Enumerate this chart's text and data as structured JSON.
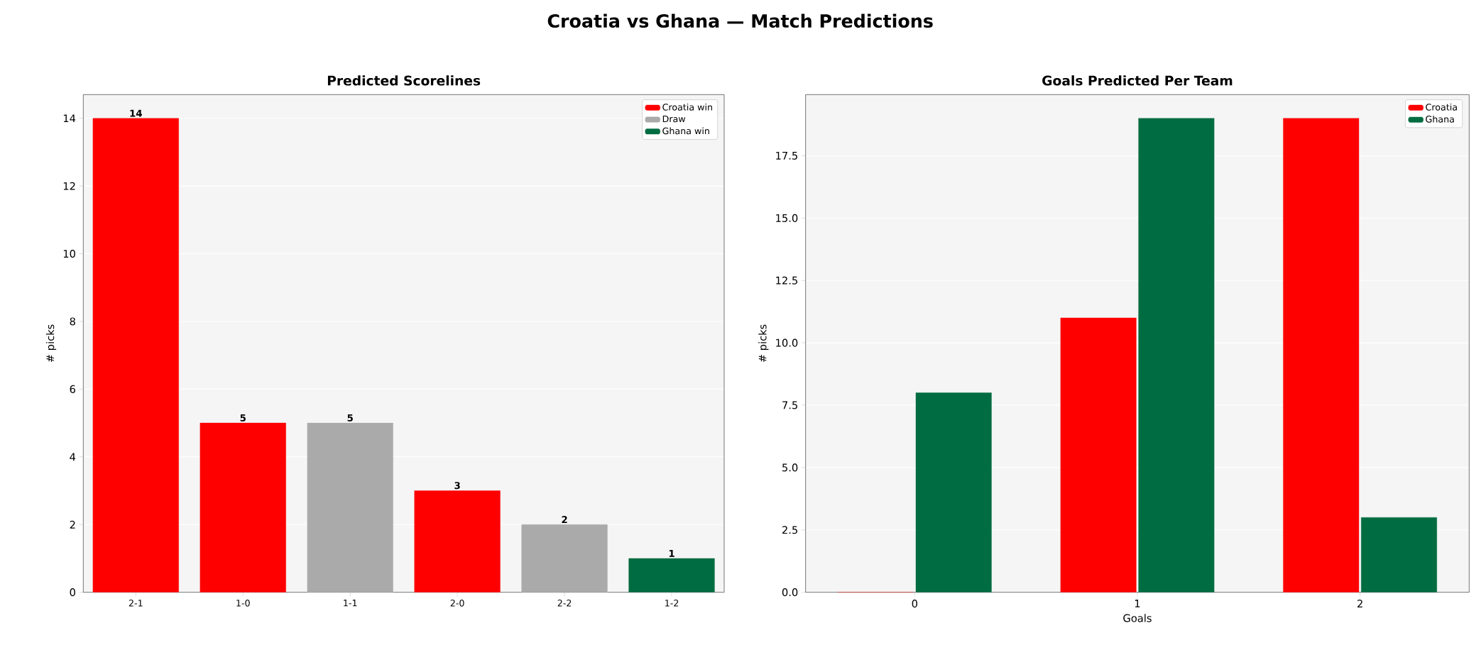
{
  "chart_data": [
    {
      "type": "bar",
      "title": "Predicted Scorelines",
      "ylabel": "# picks",
      "categories": [
        "2-1",
        "1-0",
        "1-1",
        "2-0",
        "2-2",
        "1-2"
      ],
      "stacked": true,
      "data_labels": true,
      "grid": "y",
      "legend": "top right",
      "ylim": [
        0,
        14.7
      ],
      "yticks": [
        0,
        2,
        4,
        6,
        8,
        10,
        12,
        14
      ],
      "annotations": [
        "Croatia vs Ghana  —  Match Predictions"
      ],
      "series": [
        {
          "name": "Croatia win",
          "color": "#ff0000",
          "values": [
            14,
            5,
            null,
            3,
            null,
            null
          ]
        },
        {
          "name": "Draw",
          "color": "#aaaaaa",
          "values": [
            null,
            null,
            5,
            null,
            2,
            null
          ]
        },
        {
          "name": "Ghana win",
          "color": "#006c41",
          "values": [
            null,
            null,
            null,
            null,
            null,
            1
          ]
        }
      ]
    },
    {
      "type": "bar",
      "title": "Goals Predicted Per Team",
      "xlabel": "Goals",
      "ylabel": "# picks",
      "categories": [
        "0",
        "1",
        "2"
      ],
      "grid": "y",
      "legend": "top right",
      "ylim": [
        0,
        19.95
      ],
      "yticks": [
        {
          "value": 0,
          "label": "0.0"
        },
        {
          "value": 2.5,
          "label": "2.5"
        },
        {
          "value": 5,
          "label": "5.0"
        },
        {
          "value": 7.5,
          "label": "7.5"
        },
        {
          "value": 10,
          "label": "10.0"
        },
        {
          "value": 12.5,
          "label": "12.5"
        },
        {
          "value": 15,
          "label": "15.0"
        },
        {
          "value": 17.5,
          "label": "17.5"
        }
      ],
      "series": [
        {
          "name": "Croatia",
          "color": "#ff0000",
          "values": [
            0,
            11,
            19
          ]
        },
        {
          "name": "Ghana",
          "color": "#006c41",
          "values": [
            8,
            19,
            3
          ]
        }
      ]
    }
  ]
}
